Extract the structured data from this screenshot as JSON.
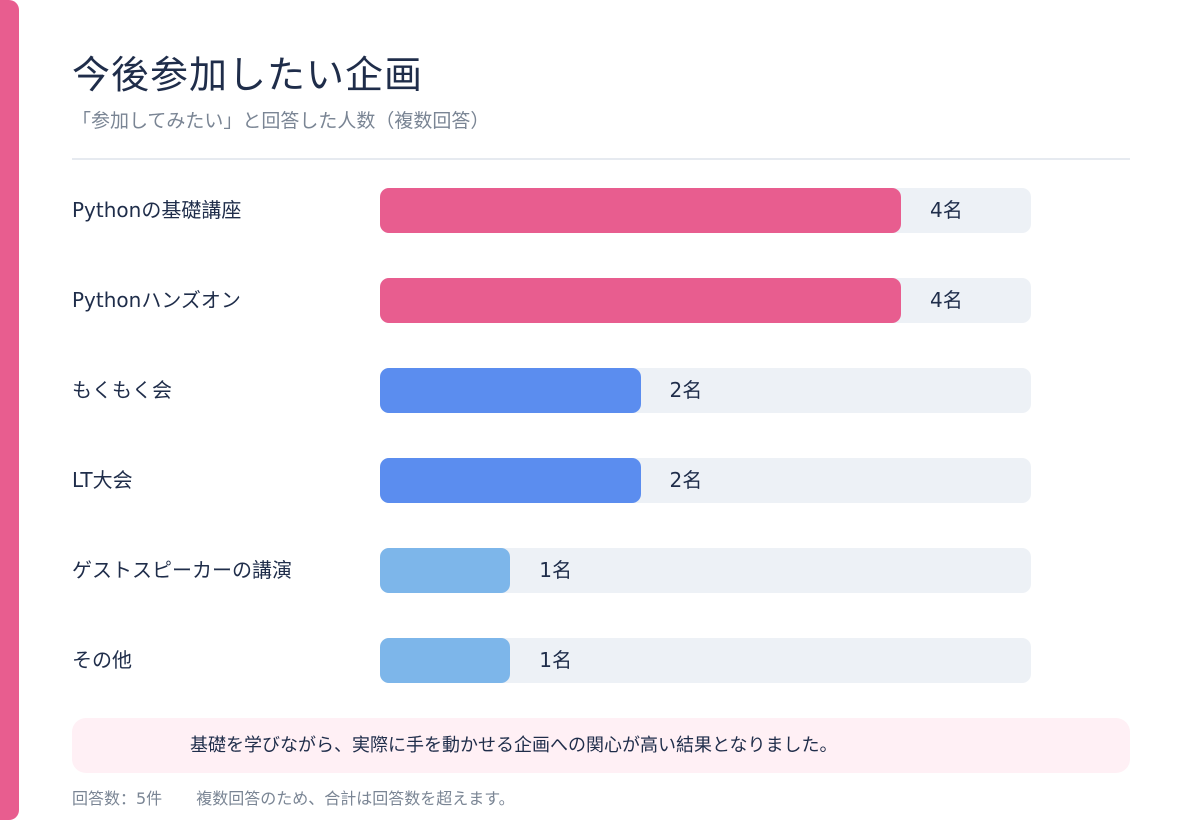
{
  "title": "今後参加したい企画",
  "subtitle": "「参加してみたい」と回答した人数（複数回答）",
  "colors": {
    "accent": "#e85d8f",
    "high": "#e85d8f",
    "mid": "#5b8def",
    "low": "#7db6ea",
    "track": "#edf1f6"
  },
  "chart_data": {
    "type": "bar",
    "orientation": "horizontal",
    "xlim": [
      0,
      5
    ],
    "categories": [
      "Pythonの基礎講座",
      "Pythonハンズオン",
      "もくもく会",
      "LT大会",
      "ゲストスピーカーの講演",
      "その他"
    ],
    "values": [
      4,
      4,
      2,
      2,
      1,
      1
    ],
    "value_labels": [
      "4名",
      "4名",
      "2名",
      "2名",
      "1名",
      "1名"
    ],
    "bar_colors": [
      "#e85d8f",
      "#e85d8f",
      "#5b8def",
      "#5b8def",
      "#7db6ea",
      "#7db6ea"
    ]
  },
  "note": "基礎を学びながら、実際に手を動かせる企画への関心が高い結果となりました。",
  "footer": {
    "respondents": "回答数：5件",
    "remark": "複数回答のため、合計は回答数を超えます。"
  }
}
